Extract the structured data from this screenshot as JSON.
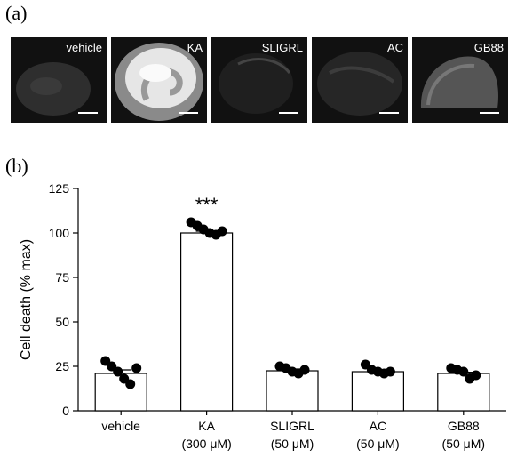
{
  "panel_a": {
    "label": "(a)",
    "images": [
      {
        "name": "vehicle",
        "brightness": "dim"
      },
      {
        "name": "KA",
        "brightness": "bright"
      },
      {
        "name": "SLIGRL",
        "brightness": "dim"
      },
      {
        "name": "AC",
        "brightness": "dim"
      },
      {
        "name": "GB88",
        "brightness": "dim"
      }
    ]
  },
  "panel_b": {
    "label": "(b)"
  },
  "chart_data": {
    "type": "bar",
    "categories": [
      "vehicle",
      "KA",
      "SLIGRL",
      "AC",
      "GB88"
    ],
    "sublabels": [
      "",
      "(300 μM)",
      "(50 μM)",
      "(50 μM)",
      "(50 μM)"
    ],
    "values": [
      21,
      100,
      22.5,
      22,
      21
    ],
    "errors": [
      2,
      1,
      1,
      0.7,
      0.7
    ],
    "points": [
      [
        28,
        25,
        22,
        18,
        15,
        24
      ],
      [
        106,
        104,
        102,
        100,
        99,
        101
      ],
      [
        25,
        24,
        22,
        21,
        23
      ],
      [
        26,
        23,
        22,
        21,
        22
      ],
      [
        24,
        23,
        22,
        18,
        20
      ]
    ],
    "annotations": [
      {
        "category": "KA",
        "text": "***"
      }
    ],
    "ylabel": "Cell death (% max)",
    "xlabel": "",
    "ylim": [
      0,
      125
    ],
    "yticks": [
      0,
      25,
      50,
      75,
      100,
      125
    ],
    "grid": false
  }
}
